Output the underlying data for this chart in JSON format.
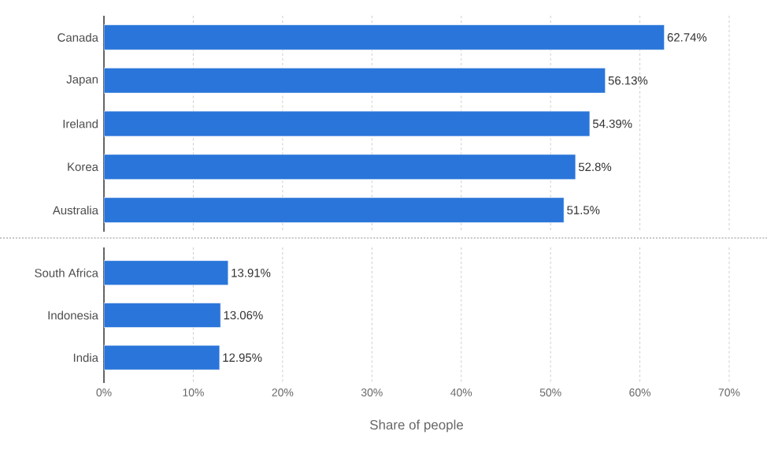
{
  "chart_data": [
    {
      "type": "bar",
      "orientation": "horizontal",
      "categories": [
        "Canada",
        "Japan",
        "Ireland",
        "Korea",
        "Australia"
      ],
      "values": [
        62.74,
        56.13,
        54.39,
        52.8,
        51.5
      ],
      "color": "#2a75d9",
      "xlim": [
        0,
        70
      ],
      "xticks": [
        {
          "value": 0,
          "label": null
        },
        {
          "value": 10,
          "label": null
        },
        {
          "value": 20,
          "label": null
        },
        {
          "value": 30,
          "label": null
        },
        {
          "value": 40,
          "label": null
        },
        {
          "value": 50,
          "label": null
        },
        {
          "value": 60,
          "label": null
        },
        {
          "value": 70,
          "label": null
        }
      ],
      "tick_labels": "y",
      "grid": "x",
      "value_labels": [
        "62.74%",
        "56.13%",
        "54.39%",
        "52.8%",
        "51.5%"
      ]
    },
    {
      "type": "bar",
      "orientation": "horizontal",
      "categories": [
        "South Africa",
        "Indonesia",
        "India"
      ],
      "values": [
        13.91,
        13.06,
        12.95
      ],
      "color": "#2a75d9",
      "xlim": [
        0,
        70
      ],
      "xticks": [
        {
          "value": 0,
          "label": "0%"
        },
        {
          "value": 10,
          "label": "10%"
        },
        {
          "value": 20,
          "label": "20%"
        },
        {
          "value": 30,
          "label": "30%"
        },
        {
          "value": 40,
          "label": "40%"
        },
        {
          "value": 50,
          "label": "50%"
        },
        {
          "value": 60,
          "label": "60%"
        },
        {
          "value": 70,
          "label": "70%"
        }
      ],
      "grid": "x",
      "xlabel": "Share of people",
      "value_labels": [
        "13.91%",
        "13.06%",
        "12.95%"
      ]
    }
  ]
}
